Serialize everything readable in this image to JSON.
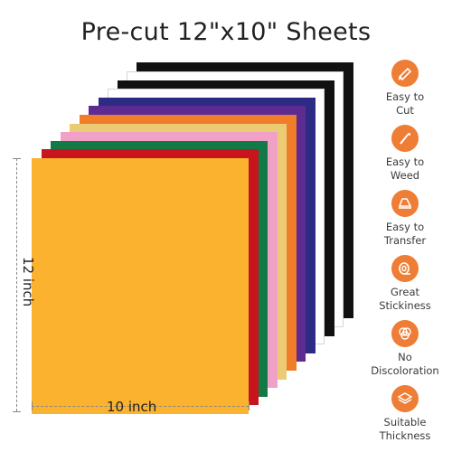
{
  "title": "Pre-cut 12\"x10\" Sheets",
  "dimensions": {
    "height": "12 inch",
    "width": "10 inch"
  },
  "sheet_colors": [
    "#111111",
    "#ffffff",
    "#111111",
    "#ffffff",
    "#2e2b86",
    "#5e2b91",
    "#f07d2a",
    "#eccb77",
    "#f2a1c6",
    "#137a47",
    "#c8141d",
    "#fbb22e"
  ],
  "accent": "#ee7d36",
  "features": [
    {
      "icon": "knife-cut-icon",
      "line1": "Easy to",
      "line2": "Cut"
    },
    {
      "icon": "weeding-hook-icon",
      "line1": "Easy to",
      "line2": "Weed"
    },
    {
      "icon": "iron-transfer-icon",
      "line1": "Easy to",
      "line2": "Transfer"
    },
    {
      "icon": "tape-roll-icon",
      "line1": "Great",
      "line2": "Stickiness"
    },
    {
      "icon": "color-circles-icon",
      "line1": "No",
      "line2": "Discoloration"
    },
    {
      "icon": "stacked-layers-icon",
      "line1": "Suitable",
      "line2": "Thickness"
    }
  ]
}
